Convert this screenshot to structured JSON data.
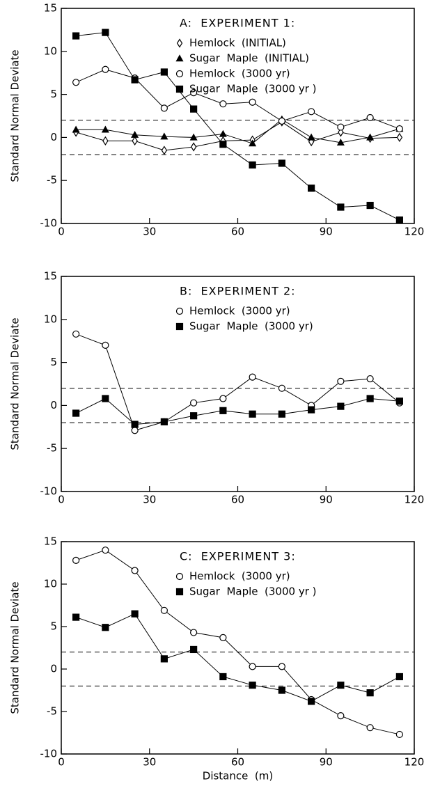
{
  "chart_data": [
    {
      "type": "line",
      "title": "A:  EXPERIMENT 1:",
      "ylabel": "Standard Normal Deviate",
      "x": [
        5,
        15,
        25,
        35,
        45,
        55,
        65,
        75,
        85,
        95,
        105,
        115
      ],
      "xlim": [
        0,
        120
      ],
      "xticks": [
        0,
        30,
        60,
        90,
        120
      ],
      "ylim": [
        -10,
        15
      ],
      "yticks": [
        -10,
        -5,
        0,
        5,
        10,
        15
      ],
      "hlines": [
        2,
        -2
      ],
      "series": [
        {
          "name": "Hemlock  (INITIAL)",
          "marker": "diamond",
          "color": "#000",
          "values": [
            0.6,
            -0.4,
            -0.4,
            -1.5,
            -1.1,
            -0.4,
            -0.3,
            1.8,
            -0.5,
            0.6,
            -0.1,
            0.0
          ]
        },
        {
          "name": "Sugar  Maple  (INITIAL)",
          "marker": "triangle",
          "color": "#000",
          "values": [
            0.9,
            0.9,
            0.3,
            0.1,
            0.0,
            0.4,
            -0.7,
            2.1,
            0.0,
            -0.6,
            0.0,
            1.0
          ]
        },
        {
          "name": "Hemlock  (3000 yr)",
          "marker": "circle",
          "color": "#000",
          "values": [
            6.4,
            7.9,
            6.9,
            3.4,
            5.2,
            3.9,
            4.1,
            1.9,
            3.0,
            1.2,
            2.3,
            1.0
          ]
        },
        {
          "name": "Sugar  Maple  (3000 yr )",
          "marker": "square",
          "color": "#000",
          "values": [
            11.8,
            12.2,
            6.7,
            7.6,
            3.3,
            -0.8,
            -3.2,
            -3.0,
            -5.9,
            -8.1,
            -7.9,
            -9.6
          ]
        }
      ]
    },
    {
      "type": "line",
      "title": "B:  EXPERIMENT 2:",
      "ylabel": "Standard Normal Deviate",
      "x": [
        5,
        15,
        25,
        35,
        45,
        55,
        65,
        75,
        85,
        95,
        105,
        115
      ],
      "xlim": [
        0,
        120
      ],
      "xticks": [
        0,
        30,
        60,
        90,
        120
      ],
      "ylim": [
        -10,
        15
      ],
      "yticks": [
        -10,
        -5,
        0,
        5,
        10,
        15
      ],
      "hlines": [
        2,
        -2
      ],
      "series": [
        {
          "name": "Hemlock  (3000 yr)",
          "marker": "circle",
          "color": "#000",
          "values": [
            8.3,
            7.0,
            -2.9,
            -1.9,
            0.3,
            0.8,
            3.3,
            2.0,
            0.0,
            2.8,
            3.1,
            0.3
          ]
        },
        {
          "name": "Sugar  Maple  (3000 yr)",
          "marker": "square",
          "color": "#000",
          "values": [
            -0.9,
            0.8,
            -2.2,
            -1.9,
            -1.2,
            -0.6,
            -1.0,
            -1.0,
            -0.5,
            -0.1,
            0.8,
            0.5
          ]
        }
      ]
    },
    {
      "type": "line",
      "title": "C:  EXPERIMENT 3:",
      "ylabel": "Standard Normal Deviate",
      "xlabel": "Distance  (m)",
      "x": [
        5,
        15,
        25,
        35,
        45,
        55,
        65,
        75,
        85,
        95,
        105,
        115
      ],
      "xlim": [
        0,
        120
      ],
      "xticks": [
        0,
        30,
        60,
        90,
        120
      ],
      "ylim": [
        -10,
        15
      ],
      "yticks": [
        -10,
        -5,
        0,
        5,
        10,
        15
      ],
      "hlines": [
        2,
        -2
      ],
      "series": [
        {
          "name": "Hemlock  (3000 yr)",
          "marker": "circle",
          "color": "#000",
          "values": [
            12.8,
            14.0,
            11.6,
            6.9,
            4.3,
            3.7,
            0.3,
            0.3,
            -3.6,
            -5.5,
            -6.9,
            -7.7
          ]
        },
        {
          "name": "Sugar  Maple  (3000 yr )",
          "marker": "square",
          "color": "#000",
          "values": [
            6.1,
            4.9,
            6.5,
            1.2,
            2.3,
            -0.9,
            -1.9,
            -2.5,
            -3.8,
            -1.9,
            -2.8,
            -0.9
          ]
        }
      ]
    }
  ]
}
